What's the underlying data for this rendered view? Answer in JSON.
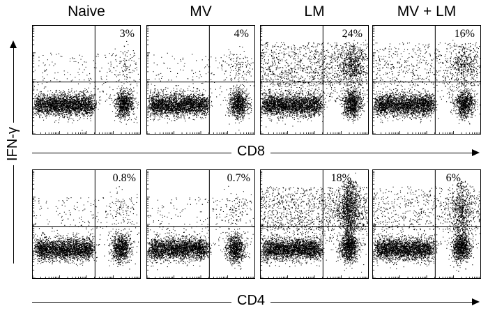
{
  "chart_data": {
    "type": "scatter",
    "column_titles": [
      "Naive",
      "MV",
      "LM",
      "MV + LM"
    ],
    "y_axis_label": "IFN-γ",
    "rows": [
      {
        "x_axis_label": "CD8",
        "quadrant_percentages": [
          "3%",
          "4%",
          "24%",
          "16%"
        ]
      },
      {
        "x_axis_label": "CD4",
        "quadrant_percentages": [
          "0.8%",
          "0.7%",
          "18%",
          "6%"
        ]
      }
    ],
    "gate_x_fraction": 0.58,
    "gate_y_fraction": 0.52,
    "point_color": "#000000"
  }
}
